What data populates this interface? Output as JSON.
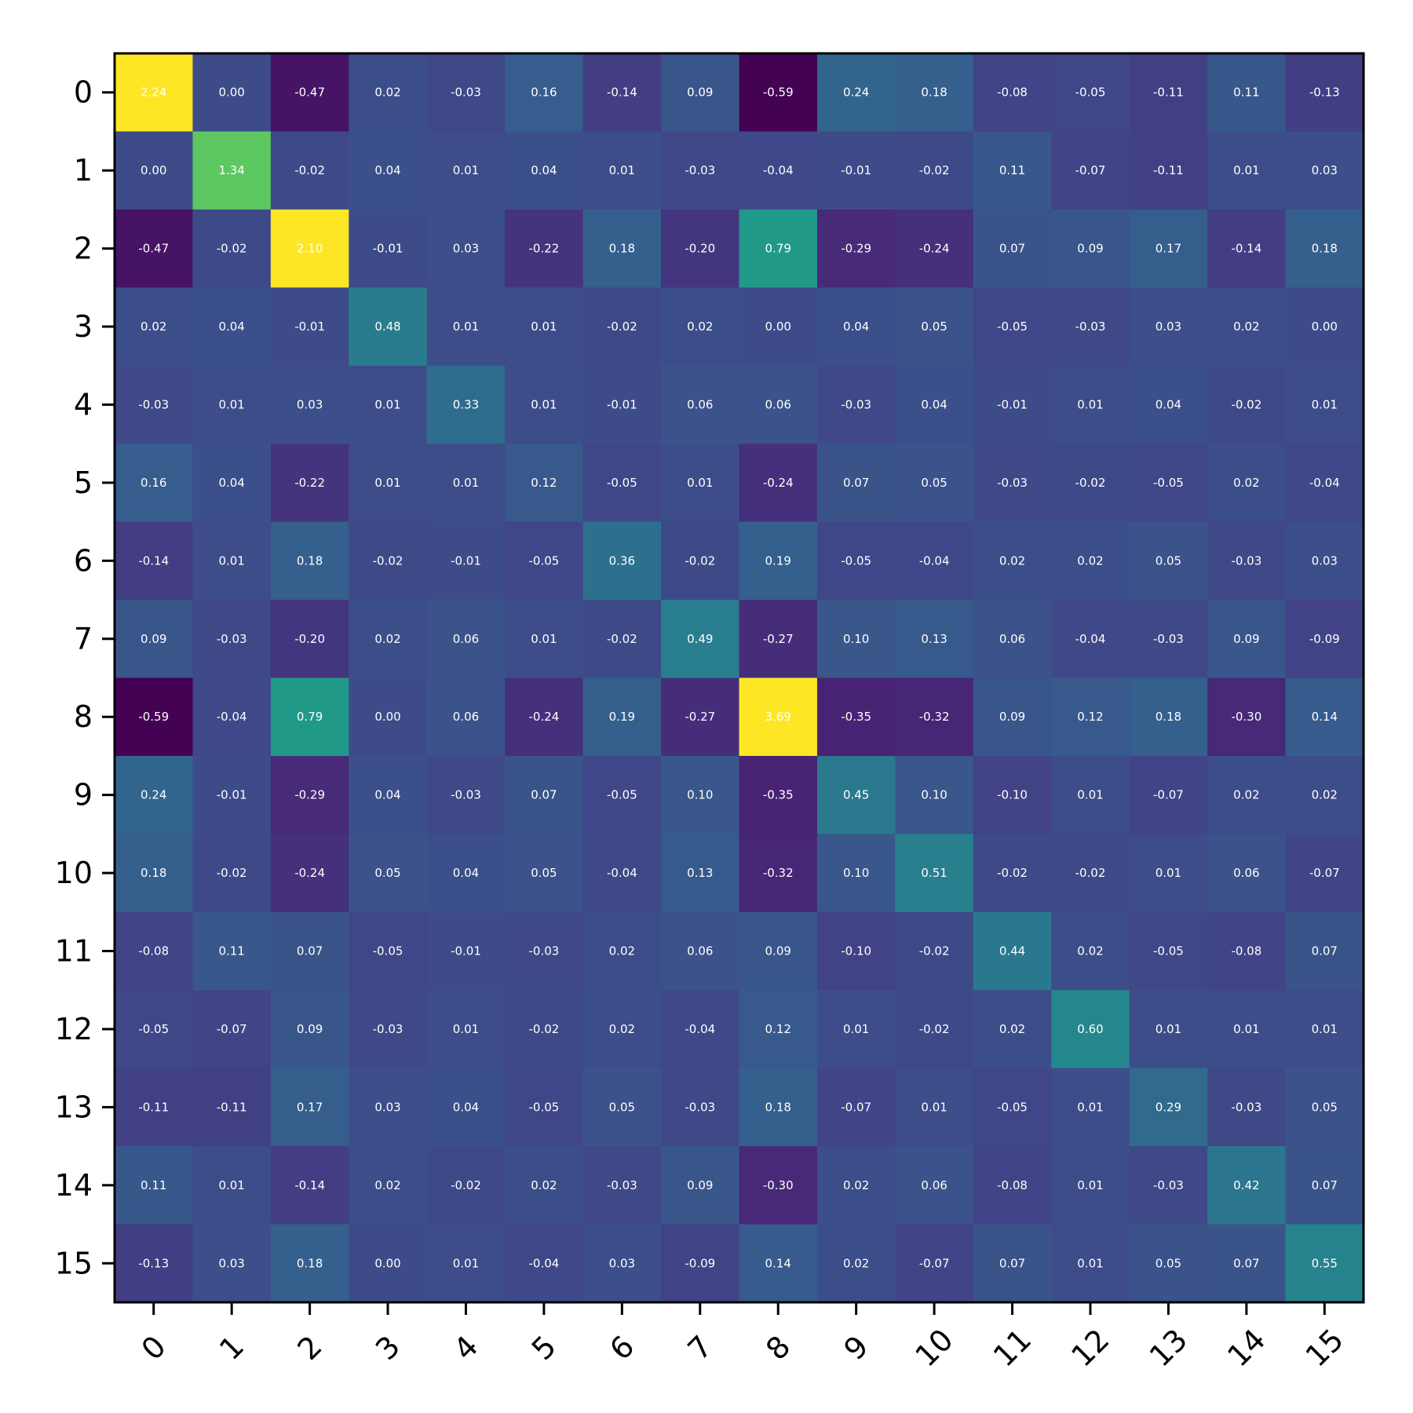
{
  "chart_data": {
    "type": "heatmap",
    "title": "",
    "xlabel": "",
    "ylabel": "",
    "x_labels": [
      "0",
      "1",
      "2",
      "3",
      "4",
      "5",
      "6",
      "7",
      "8",
      "9",
      "10",
      "11",
      "12",
      "13",
      "14",
      "15"
    ],
    "y_labels": [
      "0",
      "1",
      "2",
      "3",
      "4",
      "5",
      "6",
      "7",
      "8",
      "9",
      "10",
      "11",
      "12",
      "13",
      "14",
      "15"
    ],
    "colormap": "viridis",
    "color_range": [
      -0.6,
      2.0
    ],
    "value_format": "2-decimals",
    "values": [
      [
        2.24,
        -0.0,
        -0.47,
        0.02,
        -0.03,
        0.16,
        -0.14,
        0.09,
        -0.59,
        0.24,
        0.18,
        -0.08,
        -0.05,
        -0.11,
        0.11,
        -0.13
      ],
      [
        -0.0,
        1.34,
        -0.02,
        0.04,
        0.01,
        0.04,
        0.01,
        -0.03,
        -0.04,
        -0.01,
        -0.02,
        0.11,
        -0.07,
        -0.11,
        0.01,
        0.03
      ],
      [
        -0.47,
        -0.02,
        2.1,
        -0.01,
        0.03,
        -0.22,
        0.18,
        -0.2,
        0.79,
        -0.29,
        -0.24,
        0.07,
        0.09,
        0.17,
        -0.14,
        0.18
      ],
      [
        0.02,
        0.04,
        -0.01,
        0.48,
        0.01,
        0.01,
        -0.02,
        0.02,
        0.0,
        0.04,
        0.05,
        -0.05,
        -0.03,
        0.03,
        0.02,
        0.0
      ],
      [
        -0.03,
        0.01,
        0.03,
        0.01,
        0.33,
        0.01,
        -0.01,
        0.06,
        0.06,
        -0.03,
        0.04,
        -0.01,
        0.01,
        0.04,
        -0.02,
        0.01
      ],
      [
        0.16,
        0.04,
        -0.22,
        0.01,
        0.01,
        0.12,
        -0.05,
        0.01,
        -0.24,
        0.07,
        0.05,
        -0.03,
        -0.02,
        -0.05,
        0.02,
        -0.04
      ],
      [
        -0.14,
        0.01,
        0.18,
        -0.02,
        -0.01,
        -0.05,
        0.36,
        -0.02,
        0.19,
        -0.05,
        -0.04,
        0.02,
        0.02,
        0.05,
        -0.03,
        0.03
      ],
      [
        0.09,
        -0.03,
        -0.2,
        0.02,
        0.06,
        0.01,
        -0.02,
        0.49,
        -0.27,
        0.1,
        0.13,
        0.06,
        -0.04,
        -0.03,
        0.09,
        -0.09
      ],
      [
        -0.59,
        -0.04,
        0.79,
        0.0,
        0.06,
        -0.24,
        0.19,
        -0.27,
        3.69,
        -0.35,
        -0.32,
        0.09,
        0.12,
        0.18,
        -0.3,
        0.14
      ],
      [
        0.24,
        -0.01,
        -0.29,
        0.04,
        -0.03,
        0.07,
        -0.05,
        0.1,
        -0.35,
        0.45,
        0.1,
        -0.1,
        0.01,
        -0.07,
        0.02,
        0.02
      ],
      [
        0.18,
        -0.02,
        -0.24,
        0.05,
        0.04,
        0.05,
        -0.04,
        0.13,
        -0.32,
        0.1,
        0.51,
        -0.02,
        -0.02,
        0.01,
        0.06,
        -0.07
      ],
      [
        -0.08,
        0.11,
        0.07,
        -0.05,
        -0.01,
        -0.03,
        0.02,
        0.06,
        0.09,
        -0.1,
        -0.02,
        0.44,
        0.02,
        -0.05,
        -0.08,
        0.07
      ],
      [
        -0.05,
        -0.07,
        0.09,
        -0.03,
        0.01,
        -0.02,
        0.02,
        -0.04,
        0.12,
        0.01,
        -0.02,
        0.02,
        0.6,
        0.01,
        0.01,
        0.01
      ],
      [
        -0.11,
        -0.11,
        0.17,
        0.03,
        0.04,
        -0.05,
        0.05,
        -0.03,
        0.18,
        -0.07,
        0.01,
        -0.05,
        0.01,
        0.29,
        -0.03,
        0.05
      ],
      [
        0.11,
        0.01,
        -0.14,
        0.02,
        -0.02,
        0.02,
        -0.03,
        0.09,
        -0.3,
        0.02,
        0.06,
        -0.08,
        0.01,
        -0.03,
        0.42,
        0.07
      ],
      [
        -0.13,
        0.03,
        0.18,
        0.0,
        0.01,
        -0.04,
        0.03,
        -0.09,
        0.14,
        0.02,
        -0.07,
        0.07,
        0.01,
        0.05,
        0.07,
        0.55
      ]
    ],
    "grid": false,
    "legend": "none"
  }
}
